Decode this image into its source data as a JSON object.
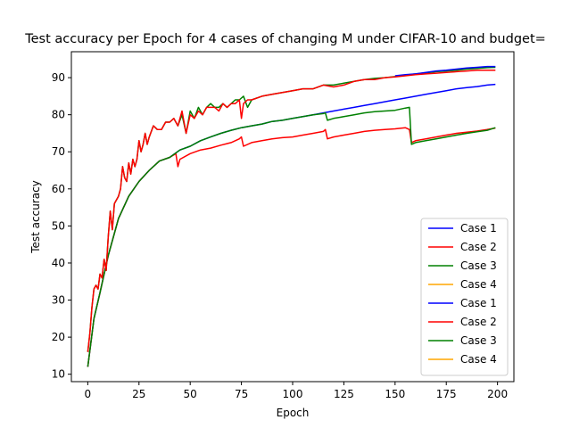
{
  "chart_data": {
    "type": "line",
    "title": "Test accuracy per Epoch for 4 cases of changing M under CIFAR-10 and budget=",
    "xlabel": "Epoch",
    "ylabel": "Test accuracy",
    "xlim": [
      -8,
      208
    ],
    "ylim": [
      8,
      97
    ],
    "xticks": [
      0,
      25,
      50,
      75,
      100,
      125,
      150,
      175,
      200
    ],
    "yticks": [
      10,
      20,
      30,
      40,
      50,
      60,
      70,
      80,
      90
    ],
    "grid": false,
    "legend_position": "lower right",
    "colors": {
      "case1": "#0000ff",
      "case2": "#ff0000",
      "case3": "#008000",
      "case4": "#ffa500"
    },
    "legend": [
      {
        "label": "Case 1",
        "color": "#0000ff"
      },
      {
        "label": "Case 2",
        "color": "#ff0000"
      },
      {
        "label": "Case 3",
        "color": "#008000"
      },
      {
        "label": "Case 4",
        "color": "#ffa500"
      },
      {
        "label": "Case 1",
        "color": "#0000ff"
      },
      {
        "label": "Case 2",
        "color": "#ff0000"
      },
      {
        "label": "Case 3",
        "color": "#008000"
      },
      {
        "label": "Case 4",
        "color": "#ffa500"
      }
    ],
    "series": [
      {
        "color": "#0000ff",
        "x": [
          0,
          3,
          6,
          10,
          15,
          20,
          25,
          30,
          35,
          40,
          45,
          50,
          55,
          60,
          65,
          70,
          75,
          80,
          85,
          90,
          95,
          100,
          105,
          110,
          115,
          120,
          125,
          130,
          135,
          140,
          145,
          150,
          155,
          160,
          165,
          170,
          175,
          180,
          185,
          190,
          195,
          199
        ],
        "y": [
          12,
          25,
          32,
          42,
          52,
          58,
          62,
          65,
          67.5,
          68.5,
          70.5,
          71.5,
          73,
          74,
          75,
          75.8,
          76.5,
          77,
          77.5,
          78.2,
          78.5,
          79,
          79.5,
          80,
          80.5,
          81,
          81.5,
          82,
          82.5,
          83,
          83.5,
          84,
          84.5,
          85,
          85.5,
          86,
          86.5,
          87,
          87.3,
          87.6,
          88,
          88.2
        ]
      },
      {
        "color": "#ff0000",
        "x": [
          0,
          3,
          6,
          10,
          15,
          20,
          25,
          30,
          35,
          40,
          43,
          44,
          45,
          50,
          55,
          60,
          65,
          70,
          74,
          75,
          76,
          80,
          85,
          90,
          95,
          100,
          105,
          110,
          115,
          116,
          117,
          120,
          125,
          130,
          135,
          140,
          145,
          150,
          155,
          157,
          158,
          160,
          165,
          170,
          175,
          180,
          185,
          190,
          195,
          199
        ],
        "y": [
          12,
          25,
          32,
          42,
          52,
          58,
          62,
          65,
          67.5,
          68.5,
          69.5,
          66,
          68,
          69.5,
          70.5,
          71,
          71.8,
          72.5,
          73.5,
          74,
          71.5,
          72.5,
          73,
          73.5,
          73.8,
          74,
          74.5,
          75,
          75.5,
          76,
          73.5,
          74,
          74.5,
          75,
          75.5,
          75.8,
          76,
          76.2,
          76.5,
          76,
          72.5,
          73,
          73.5,
          74,
          74.5,
          75,
          75.3,
          75.6,
          76,
          76.4
        ]
      },
      {
        "color": "#008000",
        "x": [
          0,
          3,
          6,
          10,
          15,
          20,
          25,
          30,
          35,
          40,
          45,
          50,
          55,
          60,
          65,
          70,
          75,
          80,
          85,
          90,
          95,
          100,
          105,
          110,
          115,
          116,
          117,
          120,
          125,
          130,
          135,
          140,
          145,
          150,
          155,
          157,
          158,
          160,
          165,
          170,
          175,
          180,
          185,
          190,
          195,
          199
        ],
        "y": [
          12,
          25,
          32,
          42,
          52,
          58,
          62,
          65,
          67.5,
          68.5,
          70.5,
          71.5,
          73,
          74,
          75,
          75.8,
          76.5,
          77,
          77.5,
          78.2,
          78.5,
          79,
          79.5,
          80,
          80.3,
          80.5,
          78.5,
          79,
          79.5,
          80,
          80.5,
          80.8,
          81,
          81.2,
          81.8,
          82,
          72,
          72.5,
          73,
          73.5,
          74,
          74.5,
          75,
          75.4,
          75.8,
          76.5
        ]
      },
      {
        "color": "#008000",
        "x": [
          0,
          1,
          2,
          3,
          4,
          5,
          6,
          7,
          8,
          9,
          10,
          11,
          12,
          13,
          14,
          15,
          16,
          17,
          18,
          19,
          20,
          21,
          22,
          23,
          24,
          25,
          26,
          27,
          28,
          29,
          30,
          32,
          34,
          36,
          38,
          40,
          42,
          44,
          46,
          48,
          50,
          52,
          54,
          56,
          58,
          60,
          62,
          64,
          66,
          68,
          70,
          72,
          74,
          76,
          78,
          80,
          85,
          90,
          95,
          100,
          105,
          110,
          115,
          120,
          125,
          130,
          135,
          140,
          145,
          150,
          155,
          160,
          165,
          170,
          175,
          180,
          185,
          190,
          195,
          199
        ],
        "y": [
          16,
          21,
          28,
          33,
          34,
          33,
          37,
          36,
          41,
          38,
          47,
          54,
          49,
          56,
          57,
          58,
          60,
          66,
          63,
          62,
          67,
          64,
          68,
          66,
          68,
          73,
          70,
          72,
          75,
          72,
          74,
          77,
          76,
          76,
          78,
          78,
          79,
          77,
          80,
          75,
          81,
          79,
          82,
          80,
          82,
          83,
          82,
          82,
          83,
          82,
          83,
          84,
          84,
          85,
          82,
          84,
          85,
          85.5,
          86,
          86.5,
          87,
          87,
          88,
          88,
          88.5,
          89,
          89.5,
          89.8,
          90,
          90.3,
          90.7,
          91,
          91.3,
          91.6,
          91.8,
          92,
          92.3,
          92.5,
          92.7,
          92.8
        ]
      },
      {
        "color": "#0000ff",
        "x": [
          150,
          155,
          160,
          165,
          170,
          175,
          180,
          185,
          190,
          195,
          199
        ],
        "y": [
          90.5,
          90.8,
          91,
          91.4,
          91.8,
          92,
          92.3,
          92.6,
          92.8,
          93,
          93
        ]
      },
      {
        "color": "#ff0000",
        "x": [
          0,
          1,
          2,
          3,
          4,
          5,
          6,
          7,
          8,
          9,
          10,
          11,
          12,
          13,
          14,
          15,
          16,
          17,
          18,
          19,
          20,
          21,
          22,
          23,
          24,
          25,
          26,
          27,
          28,
          29,
          30,
          32,
          34,
          36,
          38,
          40,
          42,
          44,
          46,
          48,
          50,
          52,
          54,
          56,
          58,
          60,
          62,
          64,
          66,
          68,
          70,
          72,
          74,
          75,
          76,
          78,
          80,
          85,
          90,
          95,
          100,
          105,
          110,
          115,
          120,
          125,
          130,
          135,
          140,
          145,
          150,
          155,
          160,
          165,
          170,
          175,
          180,
          185,
          190,
          195,
          199
        ],
        "y": [
          16,
          21,
          28,
          33,
          34,
          33,
          37,
          36,
          41,
          38,
          47,
          54,
          49,
          56,
          57,
          58,
          60,
          66,
          63,
          62,
          67,
          64,
          68,
          66,
          68,
          73,
          70,
          72,
          75,
          72,
          74,
          77,
          76,
          76,
          78,
          78,
          79,
          77,
          81,
          75,
          80,
          79,
          81,
          80,
          82,
          82,
          82,
          81,
          83,
          82,
          83,
          83,
          84,
          79,
          83,
          84,
          84,
          85,
          85.5,
          86,
          86.5,
          87,
          87,
          88,
          87.5,
          88,
          89,
          89.5,
          89.5,
          90,
          90.2,
          90.5,
          90.8,
          91,
          91.2,
          91.4,
          91.6,
          91.8,
          92,
          92,
          92
        ]
      }
    ]
  }
}
